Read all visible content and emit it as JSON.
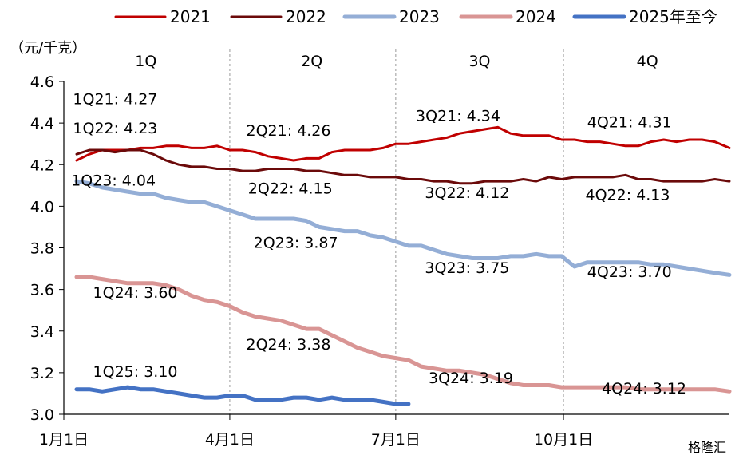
{
  "chart_data": {
    "type": "line",
    "ylabel": "（元/千克）",
    "ylim": [
      3.0,
      4.6
    ],
    "yticks": [
      "3.0",
      "3.2",
      "3.4",
      "3.6",
      "3.8",
      "4.0",
      "4.2",
      "4.4",
      "4.6"
    ],
    "xlim": [
      0,
      365
    ],
    "xticks": [
      {
        "label": "1月1日",
        "day": 0
      },
      {
        "label": "4月1日",
        "day": 91
      },
      {
        "label": "7月1日",
        "day": 182
      },
      {
        "label": "10月1日",
        "day": 274
      }
    ],
    "quarters": [
      {
        "label": "1Q",
        "day": 45
      },
      {
        "label": "2Q",
        "day": 136
      },
      {
        "label": "3Q",
        "day": 228
      },
      {
        "label": "4Q",
        "day": 320
      }
    ],
    "grid": "vertical dashed at quarter boundaries",
    "legend_position": "top",
    "series": [
      {
        "name": "2021",
        "color": "#C00000",
        "x": [
          7,
          14,
          21,
          28,
          35,
          42,
          49,
          56,
          63,
          70,
          77,
          84,
          91,
          98,
          105,
          112,
          119,
          126,
          133,
          140,
          147,
          154,
          161,
          168,
          175,
          182,
          189,
          196,
          203,
          210,
          217,
          224,
          231,
          238,
          245,
          252,
          259,
          266,
          273,
          280,
          287,
          294,
          301,
          308,
          315,
          322,
          329,
          336,
          343,
          350,
          357,
          365
        ],
        "y": [
          4.22,
          4.25,
          4.27,
          4.27,
          4.27,
          4.28,
          4.28,
          4.29,
          4.29,
          4.28,
          4.28,
          4.29,
          4.27,
          4.27,
          4.26,
          4.24,
          4.23,
          4.22,
          4.23,
          4.23,
          4.26,
          4.27,
          4.27,
          4.27,
          4.28,
          4.3,
          4.3,
          4.31,
          4.32,
          4.33,
          4.35,
          4.36,
          4.37,
          4.38,
          4.35,
          4.34,
          4.34,
          4.34,
          4.32,
          4.32,
          4.31,
          4.31,
          4.3,
          4.29,
          4.29,
          4.31,
          4.32,
          4.31,
          4.32,
          4.32,
          4.31,
          4.28
        ]
      },
      {
        "name": "2022",
        "color": "#6B0A0A",
        "x": [
          7,
          14,
          21,
          28,
          35,
          42,
          49,
          56,
          63,
          70,
          77,
          84,
          91,
          98,
          105,
          112,
          119,
          126,
          133,
          140,
          147,
          154,
          161,
          168,
          175,
          182,
          189,
          196,
          203,
          210,
          217,
          224,
          231,
          238,
          245,
          252,
          259,
          266,
          273,
          280,
          287,
          294,
          301,
          308,
          315,
          322,
          329,
          336,
          343,
          350,
          357,
          365
        ],
        "y": [
          4.25,
          4.27,
          4.27,
          4.26,
          4.27,
          4.27,
          4.25,
          4.22,
          4.2,
          4.19,
          4.19,
          4.18,
          4.18,
          4.17,
          4.17,
          4.18,
          4.18,
          4.18,
          4.17,
          4.17,
          4.16,
          4.15,
          4.15,
          4.14,
          4.14,
          4.14,
          4.13,
          4.13,
          4.12,
          4.12,
          4.11,
          4.11,
          4.12,
          4.12,
          4.12,
          4.13,
          4.12,
          4.14,
          4.13,
          4.14,
          4.14,
          4.14,
          4.14,
          4.15,
          4.13,
          4.13,
          4.12,
          4.12,
          4.12,
          4.12,
          4.13,
          4.12
        ]
      },
      {
        "name": "2023",
        "color": "#94AED6",
        "x": [
          7,
          14,
          21,
          28,
          35,
          42,
          49,
          56,
          63,
          70,
          77,
          84,
          91,
          98,
          105,
          112,
          119,
          126,
          133,
          140,
          147,
          154,
          161,
          168,
          175,
          182,
          189,
          196,
          203,
          210,
          217,
          224,
          231,
          238,
          245,
          252,
          259,
          266,
          273,
          280,
          287,
          294,
          301,
          308,
          315,
          322,
          329,
          336,
          343,
          350,
          357,
          365
        ],
        "y": [
          4.12,
          4.11,
          4.09,
          4.08,
          4.07,
          4.06,
          4.06,
          4.04,
          4.03,
          4.02,
          4.02,
          4.0,
          3.98,
          3.96,
          3.94,
          3.94,
          3.94,
          3.94,
          3.93,
          3.9,
          3.89,
          3.88,
          3.88,
          3.86,
          3.85,
          3.83,
          3.81,
          3.81,
          3.79,
          3.77,
          3.76,
          3.75,
          3.75,
          3.75,
          3.76,
          3.76,
          3.77,
          3.76,
          3.76,
          3.71,
          3.73,
          3.73,
          3.73,
          3.73,
          3.73,
          3.72,
          3.72,
          3.71,
          3.7,
          3.69,
          3.68,
          3.67
        ]
      },
      {
        "name": "2024",
        "color": "#D99594",
        "x": [
          7,
          14,
          21,
          28,
          35,
          42,
          49,
          56,
          63,
          70,
          77,
          84,
          91,
          98,
          105,
          112,
          119,
          126,
          133,
          140,
          147,
          154,
          161,
          168,
          175,
          182,
          189,
          196,
          203,
          210,
          217,
          224,
          231,
          238,
          245,
          252,
          259,
          266,
          273,
          280,
          287,
          294,
          301,
          308,
          315,
          322,
          329,
          336,
          343,
          350,
          357,
          365
        ],
        "y": [
          3.66,
          3.66,
          3.65,
          3.64,
          3.63,
          3.63,
          3.63,
          3.62,
          3.6,
          3.57,
          3.55,
          3.54,
          3.52,
          3.49,
          3.47,
          3.46,
          3.45,
          3.43,
          3.41,
          3.41,
          3.38,
          3.35,
          3.32,
          3.3,
          3.28,
          3.27,
          3.26,
          3.23,
          3.22,
          3.21,
          3.21,
          3.2,
          3.19,
          3.17,
          3.15,
          3.14,
          3.14,
          3.14,
          3.13,
          3.13,
          3.13,
          3.13,
          3.13,
          3.13,
          3.12,
          3.12,
          3.12,
          3.12,
          3.12,
          3.12,
          3.12,
          3.11
        ]
      },
      {
        "name": "2025年至今",
        "color": "#4472C4",
        "x": [
          7,
          14,
          21,
          28,
          35,
          42,
          49,
          56,
          63,
          70,
          77,
          84,
          91,
          98,
          105,
          112,
          119,
          126,
          133,
          140,
          147,
          154,
          161,
          168,
          175,
          182,
          189
        ],
        "y": [
          3.12,
          3.12,
          3.11,
          3.12,
          3.13,
          3.12,
          3.12,
          3.11,
          3.1,
          3.09,
          3.08,
          3.08,
          3.09,
          3.09,
          3.07,
          3.07,
          3.07,
          3.08,
          3.08,
          3.07,
          3.08,
          3.07,
          3.07,
          3.07,
          3.06,
          3.05,
          3.05
        ]
      }
    ],
    "annotations": [
      {
        "text": "1Q21: 4.27",
        "color": "#000000",
        "x": 5,
        "y": 4.49,
        "anchor": "start"
      },
      {
        "text": "1Q22: 4.23",
        "color": "#000000",
        "x": 5,
        "y": 4.35,
        "anchor": "start"
      },
      {
        "text": "1Q23: 4.04",
        "color": "#000000",
        "x": 4,
        "y": 4.1,
        "anchor": "start"
      },
      {
        "text": "1Q24: 3.60",
        "color": "#000000",
        "x": 16,
        "y": 3.56,
        "anchor": "start"
      },
      {
        "text": "1Q25: 3.10",
        "color": "#000000",
        "x": 16,
        "y": 3.18,
        "anchor": "start"
      },
      {
        "text": "2Q21: 4.26",
        "color": "#000000",
        "x": 100,
        "y": 4.34,
        "anchor": "start"
      },
      {
        "text": "2Q22: 4.15",
        "color": "#000000",
        "x": 101,
        "y": 4.06,
        "anchor": "start"
      },
      {
        "text": "2Q23: 3.87",
        "color": "#000000",
        "x": 104,
        "y": 3.8,
        "anchor": "start"
      },
      {
        "text": "2Q24: 3.38",
        "color": "#000000",
        "x": 100,
        "y": 3.31,
        "anchor": "start"
      },
      {
        "text": "3Q21: 4.34",
        "color": "#000000",
        "x": 193,
        "y": 4.41,
        "anchor": "start"
      },
      {
        "text": "3Q22: 4.12",
        "color": "#000000",
        "x": 198,
        "y": 4.04,
        "anchor": "start"
      },
      {
        "text": "3Q23: 3.75",
        "color": "#000000",
        "x": 198,
        "y": 3.68,
        "anchor": "start"
      },
      {
        "text": "3Q24: 3.19",
        "color": "#000000",
        "x": 200,
        "y": 3.15,
        "anchor": "start"
      },
      {
        "text": "4Q21: 4.31",
        "color": "#000000",
        "x": 287,
        "y": 4.38,
        "anchor": "start"
      },
      {
        "text": "4Q22: 4.13",
        "color": "#000000",
        "x": 286,
        "y": 4.03,
        "anchor": "start"
      },
      {
        "text": "4Q23: 3.70",
        "color": "#000000",
        "x": 287,
        "y": 3.66,
        "anchor": "start"
      },
      {
        "text": "4Q24: 3.12",
        "color": "#000000",
        "x": 295,
        "y": 3.1,
        "anchor": "start"
      }
    ],
    "watermark": "格隆汇"
  }
}
